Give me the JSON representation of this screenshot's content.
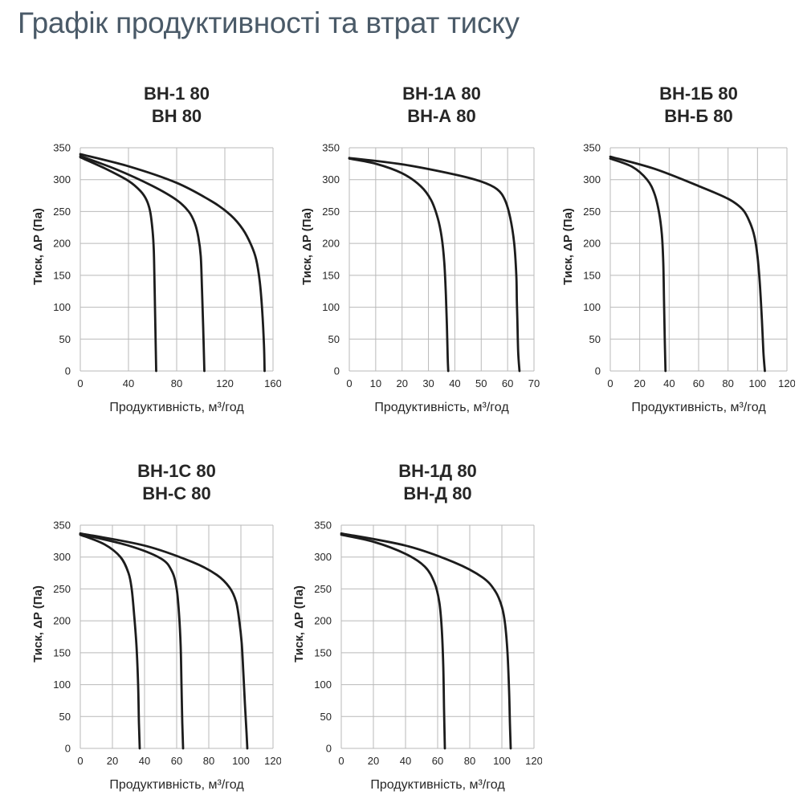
{
  "title": "Графік продуктивності та втрат тиску",
  "chart_data": [
    {
      "type": "line",
      "title_lines": [
        "ВН-1 80",
        "ВН 80"
      ],
      "xlabel": "Продуктивність, м³/год",
      "ylabel": "Тиск, ΔP (Па)",
      "xlim": [
        0,
        160
      ],
      "ylim": [
        0,
        350
      ],
      "xticks": [
        0,
        40,
        80,
        120,
        160
      ],
      "yticks": [
        0,
        50,
        100,
        150,
        200,
        250,
        300,
        350
      ],
      "grid": true,
      "series": [
        {
          "x": [
            0,
            20,
            40,
            50,
            55,
            58,
            60,
            61,
            61.5,
            62,
            62.5,
            63
          ],
          "y": [
            335,
            318,
            298,
            282,
            268,
            250,
            220,
            190,
            150,
            100,
            50,
            0
          ]
        },
        {
          "x": [
            0,
            30,
            60,
            80,
            90,
            95,
            98,
            100,
            101,
            102,
            103
          ],
          "y": [
            337,
            316,
            290,
            268,
            250,
            232,
            210,
            180,
            130,
            70,
            0
          ]
        },
        {
          "x": [
            0,
            40,
            80,
            110,
            125,
            135,
            142,
            146,
            149,
            151,
            152.5,
            153
          ],
          "y": [
            340,
            321,
            295,
            265,
            244,
            222,
            197,
            175,
            140,
            95,
            40,
            0
          ]
        }
      ]
    },
    {
      "type": "line",
      "title_lines": [
        "ВН-1А 80",
        "ВН-А 80"
      ],
      "xlabel": "Продуктивність, м³/год",
      "ylabel": "Тиск, ΔP (Па)",
      "xlim": [
        0,
        70
      ],
      "ylim": [
        0,
        350
      ],
      "xticks": [
        0,
        10,
        20,
        30,
        40,
        50,
        60,
        70
      ],
      "yticks": [
        0,
        50,
        100,
        150,
        200,
        250,
        300,
        350
      ],
      "grid": true,
      "series": [
        {
          "x": [
            0,
            10,
            20,
            27,
            31,
            33.5,
            35,
            36,
            36.6,
            37,
            37.3,
            37.5
          ],
          "y": [
            333,
            325,
            310,
            290,
            268,
            240,
            210,
            170,
            120,
            70,
            20,
            0
          ]
        },
        {
          "x": [
            0,
            20,
            40,
            50,
            56,
            59,
            61,
            62.5,
            63.3,
            63.5,
            63.7,
            64,
            64.5
          ],
          "y": [
            334,
            324,
            308,
            297,
            285,
            268,
            240,
            200,
            150,
            110,
            80,
            30,
            0
          ]
        }
      ]
    },
    {
      "type": "line",
      "title_lines": [
        "ВН-1Б 80",
        "ВН-Б 80"
      ],
      "xlabel": "Продуктивність, м³/год",
      "ylabel": "Тиск, ΔP (Па)",
      "xlim": [
        0,
        120
      ],
      "ylim": [
        0,
        350
      ],
      "xticks": [
        0,
        20,
        40,
        60,
        80,
        100,
        120
      ],
      "yticks": [
        0,
        50,
        100,
        150,
        200,
        250,
        300,
        350
      ],
      "grid": true,
      "series": [
        {
          "x": [
            0,
            15,
            25,
            30,
            33,
            35,
            36,
            36.5,
            37,
            37.5
          ],
          "y": [
            333,
            320,
            300,
            278,
            250,
            215,
            170,
            110,
            50,
            0
          ]
        },
        {
          "x": [
            0,
            30,
            60,
            80,
            90,
            95,
            98,
            100,
            101.5,
            103,
            104,
            105
          ],
          "y": [
            336,
            317,
            290,
            270,
            253,
            232,
            210,
            180,
            140,
            80,
            30,
            0
          ]
        }
      ]
    },
    {
      "type": "line",
      "title_lines": [
        "ВН-1С 80",
        "ВН-С 80"
      ],
      "xlabel": "Продуктивність, м³/год",
      "ylabel": "Тиск, ΔP (Па)",
      "xlim": [
        0,
        120
      ],
      "ylim": [
        0,
        350
      ],
      "xticks": [
        0,
        20,
        40,
        60,
        80,
        100,
        120
      ],
      "yticks": [
        0,
        50,
        100,
        150,
        200,
        250,
        300,
        350
      ],
      "grid": true,
      "series": [
        {
          "x": [
            0,
            15,
            25,
            30,
            32,
            33.5,
            35,
            36,
            36.5,
            37
          ],
          "y": [
            335,
            320,
            300,
            275,
            250,
            210,
            160,
            100,
            40,
            0
          ]
        },
        {
          "x": [
            0,
            30,
            50,
            57,
            60,
            61.5,
            62.5,
            63,
            63.5,
            64
          ],
          "y": [
            336,
            318,
            298,
            278,
            250,
            210,
            160,
            100,
            40,
            0
          ]
        },
        {
          "x": [
            0,
            40,
            70,
            85,
            93,
            97,
            99,
            100.5,
            101.5,
            102.5,
            103.5,
            104
          ],
          "y": [
            337,
            318,
            292,
            272,
            252,
            230,
            200,
            165,
            120,
            70,
            25,
            0
          ]
        }
      ]
    },
    {
      "type": "line",
      "title_lines": [
        "ВН-1Д 80",
        "ВН-Д 80"
      ],
      "xlabel": "Продуктивність, м³/год",
      "ylabel": "Тиск, ΔP (Па)",
      "xlim": [
        0,
        120
      ],
      "ylim": [
        0,
        350
      ],
      "xticks": [
        0,
        20,
        40,
        60,
        80,
        100,
        120
      ],
      "yticks": [
        0,
        50,
        100,
        150,
        200,
        250,
        300,
        350
      ],
      "grid": true,
      "series": [
        {
          "x": [
            0,
            20,
            40,
            52,
            58,
            61,
            62.5,
            63.5,
            64,
            64.5
          ],
          "y": [
            335,
            324,
            305,
            285,
            260,
            230,
            190,
            130,
            60,
            0
          ]
        },
        {
          "x": [
            0,
            40,
            70,
            88,
            96,
            100,
            102,
            103.5,
            104.5,
            105,
            105.5
          ],
          "y": [
            337,
            318,
            292,
            268,
            246,
            222,
            195,
            150,
            90,
            40,
            0
          ]
        }
      ]
    }
  ]
}
